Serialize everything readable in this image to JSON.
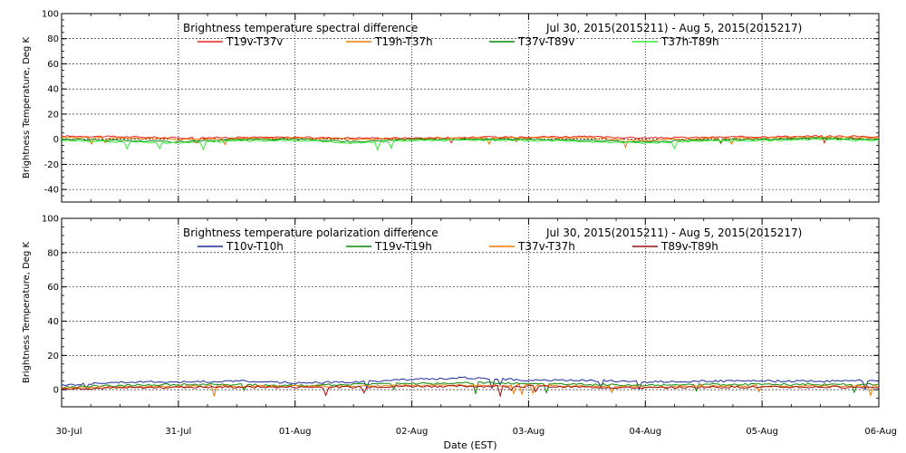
{
  "xlabel": "Date (EST)",
  "x_ticks": [
    "30-Jul",
    "31-Jul",
    "01-Aug",
    "02-Aug",
    "03-Aug",
    "04-Aug",
    "05-Aug",
    "06-Aug"
  ],
  "chart_data": [
    {
      "type": "line",
      "title": "Brightness temperature spectral difference",
      "date_range": "Jul 30, 2015(2015211) - Aug  5, 2015(2015217)",
      "ylabel": "Brightness Temperature, Deg K",
      "xlim": [
        "30-Jul",
        "06-Aug"
      ],
      "ylim": [
        -50,
        100
      ],
      "y_ticks": [
        -40,
        -20,
        0,
        20,
        40,
        60,
        80,
        100
      ],
      "grid": true,
      "legend_placement": "top",
      "x": [
        "30-Jul",
        "30-Jul 12:00",
        "31-Jul",
        "31-Jul 12:00",
        "01-Aug",
        "01-Aug 12:00",
        "02-Aug",
        "02-Aug 12:00",
        "03-Aug",
        "03-Aug 12:00",
        "04-Aug",
        "04-Aug 12:00",
        "05-Aug",
        "05-Aug 12:00",
        "06-Aug"
      ],
      "series": [
        {
          "name": "T19v-T37v",
          "color": "#e8251e",
          "values": [
            2.5,
            2,
            1,
            1.5,
            1.5,
            1,
            1,
            1.5,
            2,
            2,
            1,
            1.5,
            2,
            2.5,
            2
          ]
        },
        {
          "name": "T19h-T37h",
          "color": "#f07800",
          "values": [
            1.5,
            1,
            0,
            0.5,
            1,
            0,
            0.5,
            1,
            1,
            1,
            -1,
            0.5,
            1,
            2,
            1
          ]
        },
        {
          "name": "T37v-T89v",
          "color": "#0a8a0a",
          "values": [
            0,
            -1,
            -2,
            -0.5,
            0,
            -2,
            0,
            0,
            0,
            -1,
            -2,
            -0.5,
            0,
            1,
            0
          ]
        },
        {
          "name": "T37h-T89h",
          "color": "#34e834",
          "values": [
            -1,
            -2,
            -3,
            -1.5,
            -1,
            -3,
            -1,
            -0.5,
            -1,
            -2,
            -3,
            -1.5,
            -1,
            0,
            -1
          ]
        }
      ]
    },
    {
      "type": "line",
      "title": "Brightness temperature polarization difference",
      "date_range": "Jul 30, 2015(2015211) - Aug  5, 2015(2015217)",
      "ylabel": "Brightness Temperature, Deg K",
      "xlim": [
        "30-Jul",
        "06-Aug"
      ],
      "ylim": [
        -10,
        100
      ],
      "y_ticks": [
        0,
        20,
        40,
        60,
        80,
        100
      ],
      "grid": true,
      "legend_placement": "top",
      "x": [
        "30-Jul",
        "30-Jul 12:00",
        "31-Jul",
        "31-Jul 12:00",
        "01-Aug",
        "01-Aug 12:00",
        "02-Aug",
        "02-Aug 12:00",
        "03-Aug",
        "03-Aug 12:00",
        "04-Aug",
        "04-Aug 12:00",
        "05-Aug",
        "05-Aug 12:00",
        "06-Aug"
      ],
      "series": [
        {
          "name": "T10v-T10h",
          "color": "#1f2b9e",
          "values": [
            2.5,
            4.5,
            4.5,
            5,
            4,
            4.5,
            6,
            7,
            5.5,
            5.5,
            4.5,
            5,
            5,
            5,
            5.5
          ]
        },
        {
          "name": "T19v-T19h",
          "color": "#0a8a0a",
          "values": [
            1.5,
            2.5,
            3,
            3,
            2.5,
            3,
            3.5,
            4,
            3.5,
            3,
            2.5,
            3,
            3,
            3,
            3
          ]
        },
        {
          "name": "T37v-T37h",
          "color": "#f07800",
          "values": [
            1,
            1.5,
            2,
            2,
            2,
            2,
            2.5,
            2.5,
            2.5,
            2,
            1.5,
            2,
            2,
            2,
            2
          ]
        },
        {
          "name": "T89v-T89h",
          "color": "#a01010",
          "values": [
            0.5,
            1,
            1.5,
            1.5,
            1.5,
            1.5,
            2,
            2,
            2,
            1.5,
            1,
            1.5,
            1.5,
            1.5,
            1.5
          ]
        }
      ]
    }
  ]
}
